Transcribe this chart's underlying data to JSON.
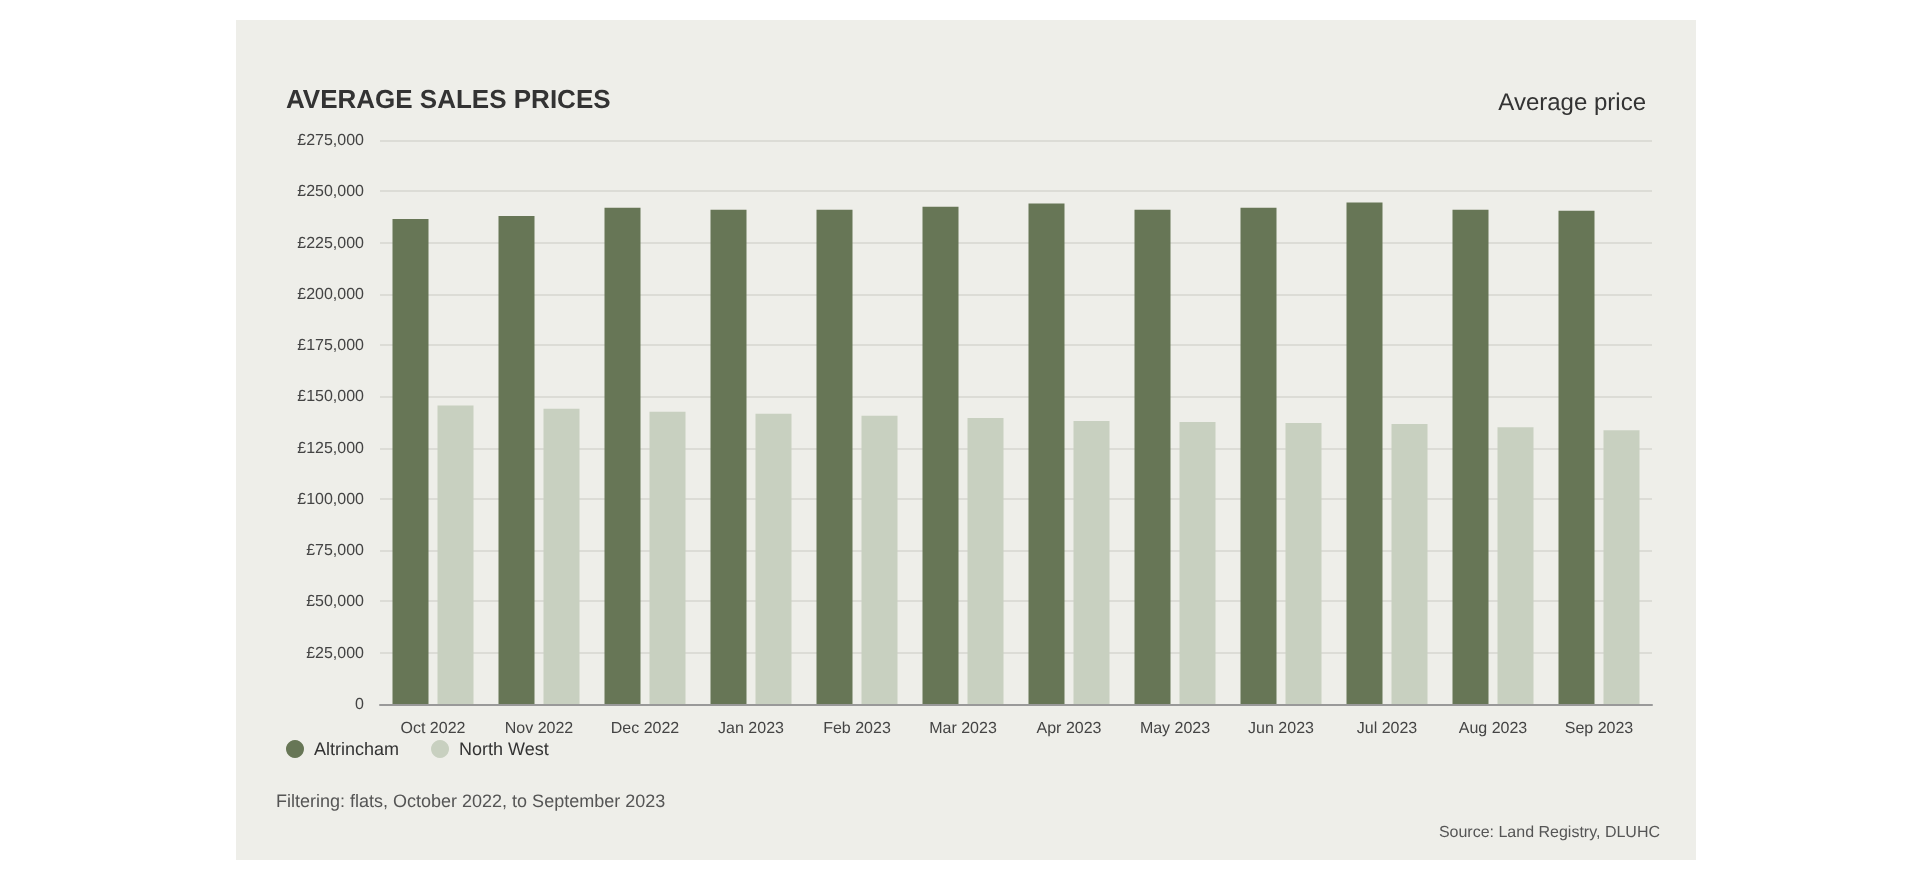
{
  "chart_data": {
    "type": "bar",
    "title": "AVERAGE SALES PRICES",
    "subtitle": "Average price",
    "categories": [
      "Oct 2022",
      "Nov 2022",
      "Dec 2022",
      "Jan 2023",
      "Feb 2023",
      "Mar 2023",
      "Apr 2023",
      "May 2023",
      "Jun 2023",
      "Jul 2023",
      "Aug 2023",
      "Sep 2023"
    ],
    "series": [
      {
        "name": "Altrincham",
        "color": "#677656",
        "values": [
          236500,
          238000,
          242000,
          241000,
          241000,
          242500,
          244000,
          241000,
          242000,
          244500,
          241000,
          240500
        ]
      },
      {
        "name": "North West",
        "color": "#c8d0c0",
        "values": [
          145500,
          144000,
          142500,
          141500,
          140500,
          139500,
          138000,
          137500,
          137000,
          136500,
          135000,
          133500
        ]
      }
    ],
    "ylim": [
      0,
      275000
    ],
    "yticks": [
      {
        "value": 0,
        "label": "0"
      },
      {
        "value": 25000,
        "label": "£25,000"
      },
      {
        "value": 50000,
        "label": "£50,000"
      },
      {
        "value": 75000,
        "label": "£75,000"
      },
      {
        "value": 100000,
        "label": "£100,000"
      },
      {
        "value": 125000,
        "label": "£125,000"
      },
      {
        "value": 150000,
        "label": "£150,000"
      },
      {
        "value": 175000,
        "label": "£175,000"
      },
      {
        "value": 200000,
        "label": "£200,000"
      },
      {
        "value": 225000,
        "label": "£225,000"
      },
      {
        "value": 250000,
        "label": "£250,000"
      },
      {
        "value": 275000,
        "label": "£275,000"
      }
    ],
    "grid": "y",
    "legend": "bottom left",
    "annotations": [
      "Filtering: flats, October 2022, to September 2023",
      "Source: Land Registry, DLUHC"
    ]
  }
}
